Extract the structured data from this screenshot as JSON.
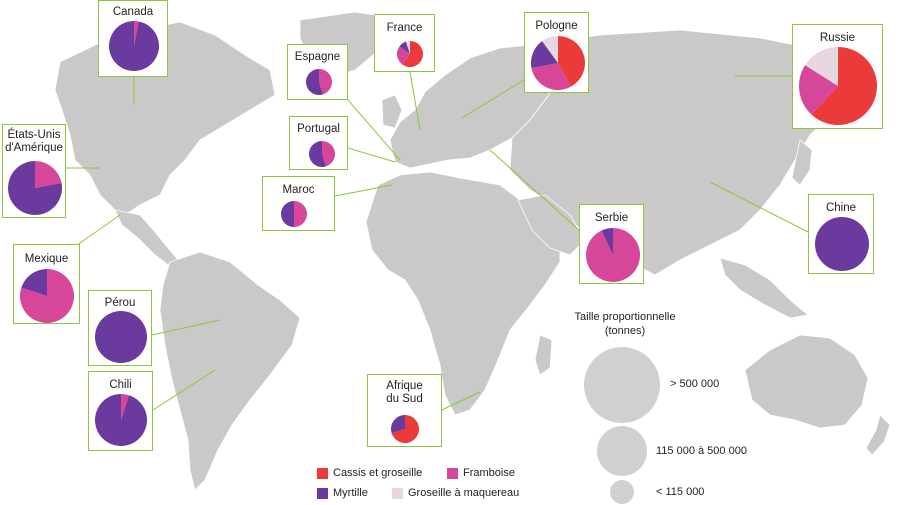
{
  "colors": {
    "cassis": "#ea3a3a",
    "framboise": "#d6479a",
    "myrtille": "#6a3a9e",
    "groseille_maquereau": "#e6d7e0",
    "land": "#c9c9c9",
    "ocean": "#ffffff",
    "connector": "#8cc63f"
  },
  "legend": {
    "cassis": "Cassis et groseille",
    "framboise": "Framboise",
    "myrtille": "Myrtille",
    "groseille_maquereau": "Groseille à maquereau"
  },
  "size_legend": {
    "title": "Taille proportionnelle\n(tonnes)",
    "large": "> 500 000",
    "medium": "115 000 à 500 000",
    "small": "< 115 000"
  },
  "countries": [
    {
      "id": "canada",
      "label": "Canada",
      "size": "medium",
      "shares": [
        0,
        3,
        97,
        0
      ]
    },
    {
      "id": "etats-unis",
      "label": "États-Unis\nd'Amérique",
      "size": "medium",
      "shares": [
        0,
        22,
        78,
        0
      ]
    },
    {
      "id": "mexique",
      "label": "Mexique",
      "size": "medium",
      "shares": [
        0,
        80,
        20,
        0
      ]
    },
    {
      "id": "perou",
      "label": "Pérou",
      "size": "medium",
      "shares": [
        0,
        0,
        100,
        0
      ]
    },
    {
      "id": "chili",
      "label": "Chili",
      "size": "medium",
      "shares": [
        0,
        5,
        95,
        0
      ]
    },
    {
      "id": "espagne",
      "label": "Espagne",
      "size": "small",
      "shares": [
        0,
        45,
        55,
        0
      ]
    },
    {
      "id": "portugal",
      "label": "Portugal",
      "size": "small",
      "shares": [
        0,
        45,
        55,
        0
      ]
    },
    {
      "id": "maroc",
      "label": "Maroc",
      "size": "small",
      "shares": [
        0,
        50,
        50,
        0
      ]
    },
    {
      "id": "france",
      "label": "France",
      "size": "small",
      "shares": [
        60,
        25,
        10,
        5
      ]
    },
    {
      "id": "pologne",
      "label": "Pologne",
      "size": "medium",
      "shares": [
        42,
        30,
        18,
        10
      ]
    },
    {
      "id": "serbie",
      "label": "Serbie",
      "size": "medium",
      "shares": [
        0,
        93,
        7,
        0
      ]
    },
    {
      "id": "afrique-du-sud",
      "label": "Afrique\ndu Sud",
      "size": "small",
      "shares": [
        70,
        0,
        30,
        0
      ]
    },
    {
      "id": "russie",
      "label": "Russie",
      "size": "large",
      "shares": [
        62,
        22,
        0,
        16
      ]
    },
    {
      "id": "chine",
      "label": "Chine",
      "size": "medium",
      "shares": [
        0,
        0,
        100,
        0
      ]
    }
  ]
}
